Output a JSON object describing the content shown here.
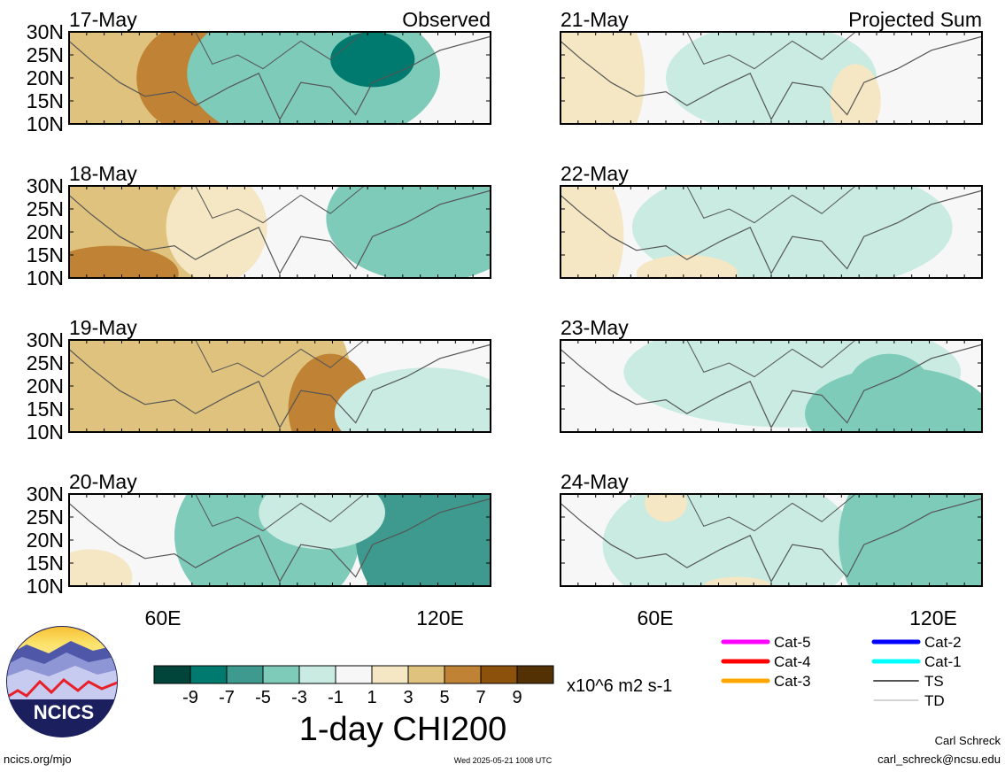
{
  "panels": [
    {
      "date": "17-May",
      "tag": "Observed"
    },
    {
      "date": "18-May",
      "tag": ""
    },
    {
      "date": "19-May",
      "tag": ""
    },
    {
      "date": "20-May",
      "tag": ""
    },
    {
      "date": "21-May",
      "tag": "Projected Sum"
    },
    {
      "date": "22-May",
      "tag": ""
    },
    {
      "date": "23-May",
      "tag": ""
    },
    {
      "date": "24-May",
      "tag": ""
    }
  ],
  "lat_labels": [
    "30N",
    "25N",
    "20N",
    "15N",
    "10N"
  ],
  "lon_labels": [
    "60E",
    "120E"
  ],
  "colorbar": {
    "colors": [
      "#00443a",
      "#007a6e",
      "#3e9a8e",
      "#7ecbba",
      "#c9ebe2",
      "#f7f7f7",
      "#f5e7c3",
      "#dfc27d",
      "#c08235",
      "#8c510a",
      "#543005"
    ],
    "tick_labels": [
      "-9",
      "-7",
      "-5",
      "-3",
      "-1",
      "1",
      "3",
      "5",
      "7",
      "9"
    ],
    "units": "x10^6 m2 s-1",
    "title": "1-day CHI200"
  },
  "legend": [
    {
      "label": "Cat-5",
      "color": "#ff00ff"
    },
    {
      "label": "Cat-4",
      "color": "#ff0000"
    },
    {
      "label": "Cat-3",
      "color": "#ffa500"
    },
    {
      "label": "Cat-2",
      "color": "#0000ff"
    },
    {
      "label": "Cat-1",
      "color": "#00ffff"
    },
    {
      "label": "TS",
      "color": "#555555"
    },
    {
      "label": "TD",
      "color": "#aaaaaa"
    }
  ],
  "logo_text": "NCICS",
  "footer": {
    "site": "ncics.org/mjo",
    "timestamp": "Wed 2025-05-21 1008 UTC",
    "author": "Carl Schreck",
    "email": "carl_schreck@ncsu.edu"
  }
}
